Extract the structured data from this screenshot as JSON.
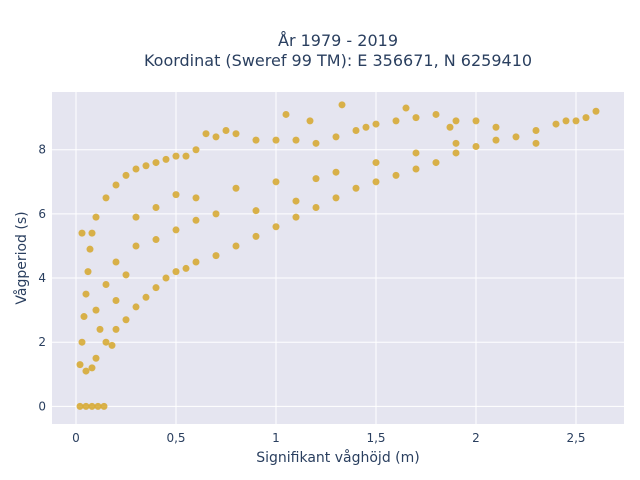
{
  "chart_data": {
    "type": "scatter",
    "title_lines": [
      "År 1979 - 2019",
      "Koordinat (Sweref 99 TM): E 356671, N 6259410"
    ],
    "xlabel": "Signifikant våghöjd (m)",
    "ylabel": "Vågperiod (s)",
    "xlim": [
      -0.12,
      2.74
    ],
    "ylim": [
      -0.55,
      9.8
    ],
    "x_ticks": [
      0,
      0.5,
      1,
      1.5,
      2,
      2.5
    ],
    "x_tick_labels": [
      "0",
      "0,5",
      "1",
      "1,5",
      "2",
      "2,5"
    ],
    "y_ticks": [
      0,
      2,
      4,
      6,
      8
    ],
    "y_tick_labels": [
      "0",
      "2",
      "4",
      "6",
      "8"
    ],
    "grid": true,
    "marker_color": "#d4a21e",
    "plot_bg": "#e5e5f0",
    "series": [
      {
        "points": [
          [
            0.02,
            1.3
          ],
          [
            0.03,
            2.0
          ],
          [
            0.04,
            2.8
          ],
          [
            0.05,
            3.5
          ],
          [
            0.06,
            4.2
          ],
          [
            0.07,
            4.9
          ],
          [
            0.08,
            5.4
          ],
          [
            0.1,
            5.9
          ],
          [
            0.05,
            1.1
          ],
          [
            0.1,
            1.5
          ],
          [
            0.15,
            2.0
          ],
          [
            0.2,
            2.4
          ],
          [
            0.25,
            2.7
          ],
          [
            0.3,
            3.1
          ],
          [
            0.35,
            3.4
          ],
          [
            0.4,
            3.7
          ],
          [
            0.45,
            4.0
          ],
          [
            0.5,
            4.2
          ],
          [
            0.55,
            4.3
          ],
          [
            0.6,
            4.5
          ],
          [
            0.7,
            4.7
          ],
          [
            0.8,
            5.0
          ],
          [
            0.9,
            5.3
          ],
          [
            1.0,
            5.6
          ],
          [
            1.1,
            5.9
          ],
          [
            1.2,
            6.2
          ],
          [
            1.3,
            6.5
          ],
          [
            1.4,
            6.8
          ],
          [
            1.5,
            7.0
          ],
          [
            1.6,
            7.2
          ],
          [
            1.7,
            7.4
          ],
          [
            1.8,
            7.6
          ],
          [
            1.9,
            7.9
          ],
          [
            2.0,
            8.1
          ],
          [
            2.1,
            8.3
          ],
          [
            2.2,
            8.4
          ],
          [
            2.3,
            8.6
          ],
          [
            2.4,
            8.8
          ],
          [
            2.5,
            8.9
          ],
          [
            2.6,
            9.2
          ],
          [
            0.15,
            6.5
          ],
          [
            0.2,
            6.9
          ],
          [
            0.25,
            7.2
          ],
          [
            0.3,
            7.4
          ],
          [
            0.35,
            7.5
          ],
          [
            0.4,
            7.6
          ],
          [
            0.45,
            7.7
          ],
          [
            0.5,
            7.8
          ],
          [
            0.55,
            7.8
          ],
          [
            0.6,
            8.0
          ],
          [
            0.7,
            8.4
          ],
          [
            0.8,
            8.5
          ],
          [
            0.9,
            8.3
          ],
          [
            1.0,
            8.3
          ],
          [
            1.1,
            8.3
          ],
          [
            1.2,
            8.2
          ],
          [
            1.3,
            8.4
          ],
          [
            1.4,
            8.6
          ],
          [
            1.5,
            8.8
          ],
          [
            1.6,
            8.9
          ],
          [
            1.7,
            9.0
          ],
          [
            1.8,
            9.1
          ],
          [
            1.9,
            8.9
          ],
          [
            2.0,
            8.9
          ],
          [
            0.65,
            8.5
          ],
          [
            0.75,
            8.6
          ],
          [
            1.05,
            9.1
          ],
          [
            1.17,
            8.9
          ],
          [
            1.33,
            9.4
          ],
          [
            1.45,
            8.7
          ],
          [
            1.65,
            9.3
          ],
          [
            1.87,
            8.7
          ],
          [
            0.02,
            0.0
          ],
          [
            0.05,
            0.0
          ],
          [
            0.08,
            0.0
          ],
          [
            0.11,
            0.0
          ],
          [
            0.14,
            0.0
          ],
          [
            0.3,
            5.9
          ],
          [
            0.4,
            6.2
          ],
          [
            0.5,
            6.6
          ],
          [
            0.6,
            6.5
          ],
          [
            0.8,
            6.8
          ],
          [
            1.0,
            7.0
          ],
          [
            1.2,
            7.1
          ],
          [
            1.5,
            7.6
          ],
          [
            0.2,
            4.5
          ],
          [
            0.3,
            5.0
          ],
          [
            0.4,
            5.2
          ],
          [
            0.5,
            5.5
          ],
          [
            0.6,
            5.8
          ],
          [
            0.7,
            6.0
          ],
          [
            0.9,
            6.1
          ],
          [
            1.1,
            6.4
          ],
          [
            1.3,
            7.3
          ],
          [
            1.7,
            7.9
          ],
          [
            1.9,
            8.2
          ],
          [
            2.1,
            8.7
          ],
          [
            2.3,
            8.2
          ],
          [
            2.45,
            8.9
          ],
          [
            2.55,
            9.0
          ],
          [
            0.1,
            3.0
          ],
          [
            0.15,
            3.8
          ],
          [
            0.2,
            3.3
          ],
          [
            0.25,
            4.1
          ],
          [
            0.12,
            2.4
          ],
          [
            0.18,
            1.9
          ],
          [
            0.08,
            1.2
          ],
          [
            0.03,
            5.4
          ]
        ]
      }
    ]
  }
}
